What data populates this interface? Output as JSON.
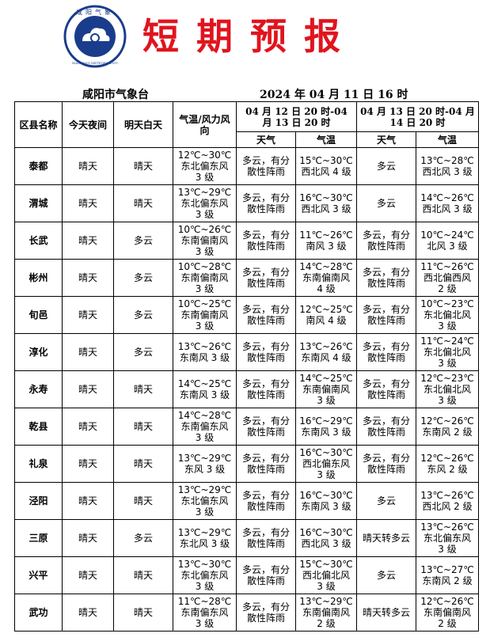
{
  "header": {
    "logo_text": "咸阳气象",
    "logo_subtext": "XIANYANG METEOROLOGY",
    "title": "短期预报",
    "org": "咸阳市气象台",
    "issued": "2024 年 04 月 11 日 16 时"
  },
  "table": {
    "columns": [
      "区县名称",
      "今天夜间",
      "明天白天",
      "气温/风力风向"
    ],
    "periods": [
      {
        "label": "04 月 12 日 20 时-04 月 13 日 20 时",
        "sub": [
          "天气",
          "气温"
        ]
      },
      {
        "label": "04 月 13 日 20 时-04 月 14 日 20 时",
        "sub": [
          "天气",
          "气温"
        ]
      }
    ],
    "rows": [
      {
        "name": "泰都",
        "tonight": "晴天",
        "tomorrow": "晴天",
        "temp_wind": "12℃~30℃ 东北偏东风 3 级",
        "d1_weather": "多云，有分散性阵雨",
        "d1_temp": "15℃~30℃ 西北风 4 级",
        "d2_weather": "多云",
        "d2_temp": "13℃~28℃ 西北风 3 级"
      },
      {
        "name": "渭城",
        "tonight": "晴天",
        "tomorrow": "晴天",
        "temp_wind": "13℃~29℃ 东北偏东风 3 级",
        "d1_weather": "多云，有分散性阵雨",
        "d1_temp": "16℃~30℃ 西北风 3 级",
        "d2_weather": "多云",
        "d2_temp": "14℃~26℃ 西北风 3 级"
      },
      {
        "name": "长武",
        "tonight": "晴天",
        "tomorrow": "多云",
        "temp_wind": "10℃~26℃ 东南偏南风 3 级",
        "d1_weather": "多云，有分散性阵雨",
        "d1_temp": "11℃~26℃ 南风 3 级",
        "d2_weather": "多云，有分散性阵雨",
        "d2_temp": "10℃~24℃ 北风 3 级"
      },
      {
        "name": "彬州",
        "tonight": "晴天",
        "tomorrow": "多云",
        "temp_wind": "10℃~28℃ 东南偏南风 3 级",
        "d1_weather": "多云，有分散性阵雨",
        "d1_temp": "14℃~28℃ 东南偏南风 4 级",
        "d2_weather": "多云，有分散性阵雨",
        "d2_temp": "11℃~26℃ 西北偏西风 2 级"
      },
      {
        "name": "旬邑",
        "tonight": "晴天",
        "tomorrow": "多云",
        "temp_wind": "10℃~25℃ 东南偏南风 3 级",
        "d1_weather": "多云，有分散性阵雨",
        "d1_temp": "12℃~25℃ 南风 4 级",
        "d2_weather": "多云，有分散性阵雨",
        "d2_temp": "10℃~23℃ 东北偏北风 3 级"
      },
      {
        "name": "淳化",
        "tonight": "晴天",
        "tomorrow": "多云",
        "temp_wind": "13℃~26℃ 东南风 3 级",
        "d1_weather": "多云，有分散性阵雨",
        "d1_temp": "13℃~26℃ 东南风 4 级",
        "d2_weather": "多云，有分散性阵雨",
        "d2_temp": "11℃~24℃ 东北偏北风 3 级"
      },
      {
        "name": "永寿",
        "tonight": "晴天",
        "tomorrow": "晴天",
        "temp_wind": "14℃~25℃ 东南风 3 级",
        "d1_weather": "多云，有分散性阵雨",
        "d1_temp": "14℃~25℃ 东南偏南风 3 级",
        "d2_weather": "多云，有分散性阵雨",
        "d2_temp": "12℃~23℃ 东北偏北风 3 级"
      },
      {
        "name": "乾县",
        "tonight": "晴天",
        "tomorrow": "晴天",
        "temp_wind": "14℃~28℃ 东南偏东风 3 级",
        "d1_weather": "多云，有分散性阵雨",
        "d1_temp": "16℃~29℃ 东南风 3 级",
        "d2_weather": "多云，有分散性阵雨",
        "d2_temp": "12℃~26℃ 东南风 2 级"
      },
      {
        "name": "礼泉",
        "tonight": "晴天",
        "tomorrow": "晴天",
        "temp_wind": "13℃~29℃ 东风 3 级",
        "d1_weather": "多云，有分散性阵雨",
        "d1_temp": "16℃~30℃ 西北偏东风 3 级",
        "d2_weather": "多云，有分散性阵雨",
        "d2_temp": "12℃~26℃ 东风 2 级"
      },
      {
        "name": "泾阳",
        "tonight": "晴天",
        "tomorrow": "晴天",
        "temp_wind": "13℃~29℃ 东北偏东风 3 级",
        "d1_weather": "多云，有分散性阵雨",
        "d1_temp": "16℃~30℃ 东南风 3 级",
        "d2_weather": "多云",
        "d2_temp": "13℃~26℃ 西北风 2 级"
      },
      {
        "name": "三原",
        "tonight": "晴天",
        "tomorrow": "多云",
        "temp_wind": "13℃~29℃ 东北风 3 级",
        "d1_weather": "多云，有分散性阵雨",
        "d1_temp": "16℃~30℃ 西北风 3 级",
        "d2_weather": "晴天转多云",
        "d2_temp": "13℃~26℃ 东北偏东风 3 级"
      },
      {
        "name": "兴平",
        "tonight": "晴天",
        "tomorrow": "晴天",
        "temp_wind": "13℃~30℃ 东北偏东风 3 级",
        "d1_weather": "多云，有分散性阵雨",
        "d1_temp": "15℃~30℃ 西北偏北风 3 级",
        "d2_weather": "多云",
        "d2_temp": "13℃~27℃ 东南风 2 级"
      },
      {
        "name": "武功",
        "tonight": "晴天",
        "tomorrow": "晴天",
        "temp_wind": "11℃~28℃ 东南偏东风 3 级",
        "d1_weather": "多云，有分散性阵雨",
        "d1_temp": "13℃~29℃ 东南偏南风 2 级",
        "d2_weather": "晴天转多云",
        "d2_temp": "12℃~26℃ 东南偏南风 2 级"
      }
    ]
  }
}
